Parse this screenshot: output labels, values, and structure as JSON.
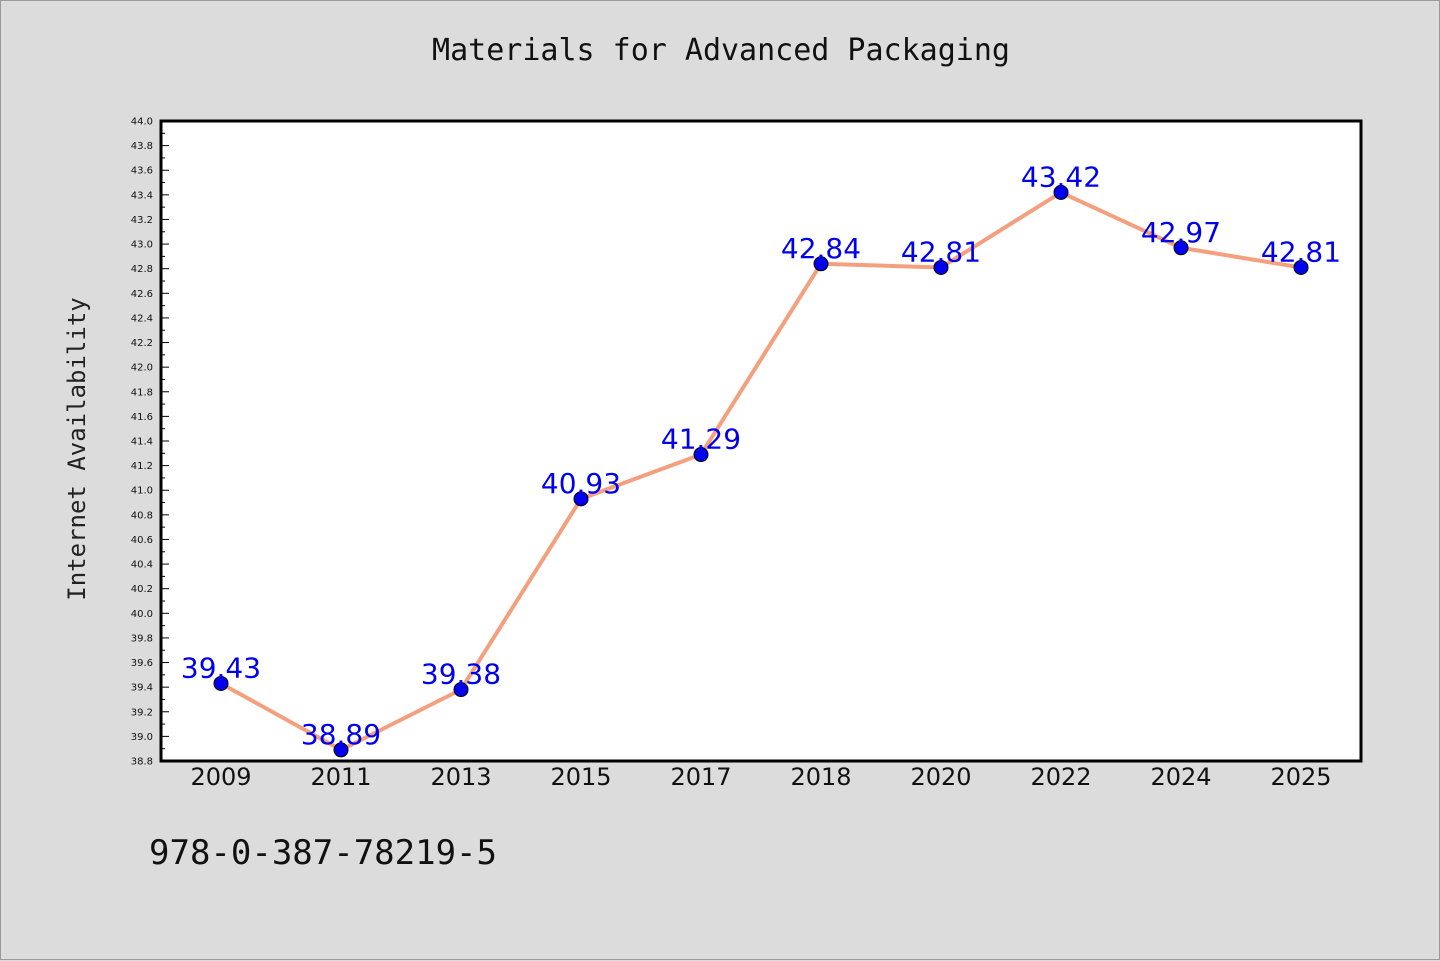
{
  "colors": {
    "background": "#dcdcdc",
    "plot_background": "#ffffff",
    "line": "#f4a07e",
    "marker": "#0000ee",
    "data_label": "#0000ee"
  },
  "footer": {
    "isbn": "978-0-387-78219-5"
  },
  "chart_data": {
    "type": "line",
    "title": "Materials for Advanced Packaging",
    "xlabel": "",
    "ylabel": "Internet Availability",
    "categories": [
      "2009",
      "2011",
      "2013",
      "2015",
      "2017",
      "2018",
      "2020",
      "2022",
      "2024",
      "2025"
    ],
    "series": [
      {
        "values": [
          39.43,
          38.89,
          39.38,
          40.93,
          41.29,
          42.84,
          42.81,
          43.42,
          42.97,
          42.81
        ],
        "labels": [
          "39.43",
          "38.89",
          "39.38",
          "40.93",
          "41.29",
          "42.84",
          "42.81",
          "43.42",
          "42.97",
          "42.81"
        ]
      }
    ],
    "ylim": [
      38.8,
      44.0
    ],
    "yticks": [
      "38.8",
      "39.0",
      "39.2",
      "39.4",
      "39.6",
      "39.8",
      "40.0",
      "40.2",
      "40.4",
      "40.6",
      "40.8",
      "41.0",
      "41.2",
      "41.4",
      "41.6",
      "41.8",
      "42.0",
      "42.2",
      "42.4",
      "42.6",
      "42.8",
      "43.0",
      "43.2",
      "43.4",
      "43.6",
      "43.8",
      "44.0"
    ],
    "grid": false,
    "legend": "none"
  }
}
